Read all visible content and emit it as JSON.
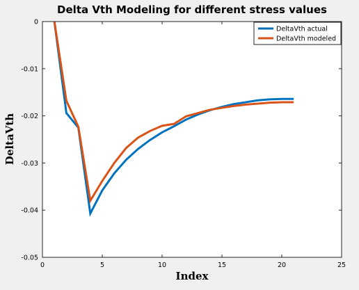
{
  "chart_data": {
    "type": "line",
    "title": "Delta Vth Modeling for different stress values",
    "xlabel": "Index",
    "ylabel": "DeltaVth",
    "xlim": [
      0,
      25
    ],
    "ylim": [
      -0.05,
      0
    ],
    "xticks": [
      0,
      5,
      10,
      15,
      20,
      25
    ],
    "xtick_labels": [
      "0",
      "5",
      "10",
      "15",
      "20",
      "25"
    ],
    "yticks": [
      0,
      -0.01,
      -0.02,
      -0.03,
      -0.04,
      -0.05
    ],
    "ytick_labels": [
      "0",
      "-0.01",
      "-0.02",
      "-0.03",
      "-0.04",
      "-0.05"
    ],
    "grid": false,
    "legend_position": "top-right",
    "series": [
      {
        "name": "DeltaVth actual",
        "color": "#0072bd",
        "x": [
          1,
          2,
          3,
          4,
          5,
          6,
          7,
          8,
          9,
          10,
          11,
          12,
          13,
          14,
          15,
          16,
          17,
          18,
          19,
          20,
          21
        ],
        "y": [
          0,
          -0.0194,
          -0.0225,
          -0.0407,
          -0.0358,
          -0.0322,
          -0.0293,
          -0.027,
          -0.0251,
          -0.0235,
          -0.0222,
          -0.0208,
          -0.0197,
          -0.0188,
          -0.0181,
          -0.0175,
          -0.0171,
          -0.0167,
          -0.0165,
          -0.0164,
          -0.0164
        ]
      },
      {
        "name": "DeltaVth modeled",
        "color": "#d95319",
        "x": [
          1,
          2,
          3,
          4,
          5,
          6,
          7,
          8,
          9,
          10,
          11,
          12,
          13,
          14,
          15,
          16,
          17,
          18,
          19,
          20,
          21
        ],
        "y": [
          0,
          -0.0168,
          -0.0223,
          -0.038,
          -0.0338,
          -0.03,
          -0.0268,
          -0.0246,
          -0.0232,
          -0.0221,
          -0.0217,
          -0.0201,
          -0.0194,
          -0.0187,
          -0.0183,
          -0.0179,
          -0.0176,
          -0.0174,
          -0.0172,
          -0.0171,
          -0.0171
        ]
      }
    ]
  }
}
